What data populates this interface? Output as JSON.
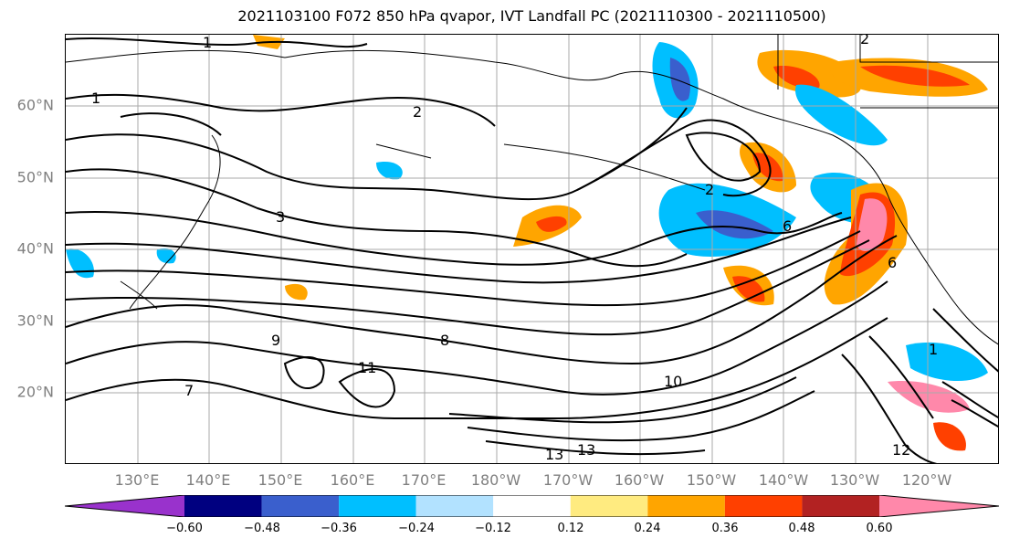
{
  "title": "2021103100 F072 850 hPa qvapor, IVT Landfall PC (2021110300 - 2021110500)",
  "map": {
    "latitude_labels": [
      "60°N",
      "50°N",
      "40°N",
      "30°N",
      "20°N"
    ],
    "longitude_labels": [
      "130°E",
      "140°E",
      "150°E",
      "160°E",
      "170°E",
      "180°W",
      "170°W",
      "160°W",
      "150°W",
      "140°W",
      "130°W",
      "120°W"
    ],
    "contour_labels": [
      "1",
      "1",
      "2",
      "3",
      "2",
      "6",
      "8",
      "9",
      "11",
      "10",
      "13",
      "13",
      "12",
      "7",
      "1",
      "6",
      "2"
    ],
    "extent": {
      "lon_min": 120,
      "lon_max": 250,
      "lat_min": 10,
      "lat_max": 70
    }
  },
  "colorbar": {
    "ticks": [
      "−0.60",
      "−0.48",
      "−0.36",
      "−0.24",
      "−0.12",
      "0.12",
      "0.24",
      "0.36",
      "0.48",
      "0.60"
    ],
    "colors": [
      "#9932cc",
      "#000080",
      "#3a5fcd",
      "#00bfff",
      "#b2e2ff",
      "#ffffff",
      "#ffeb80",
      "#ffa500",
      "#ff4000",
      "#b22222",
      "#ff88aa"
    ]
  }
}
